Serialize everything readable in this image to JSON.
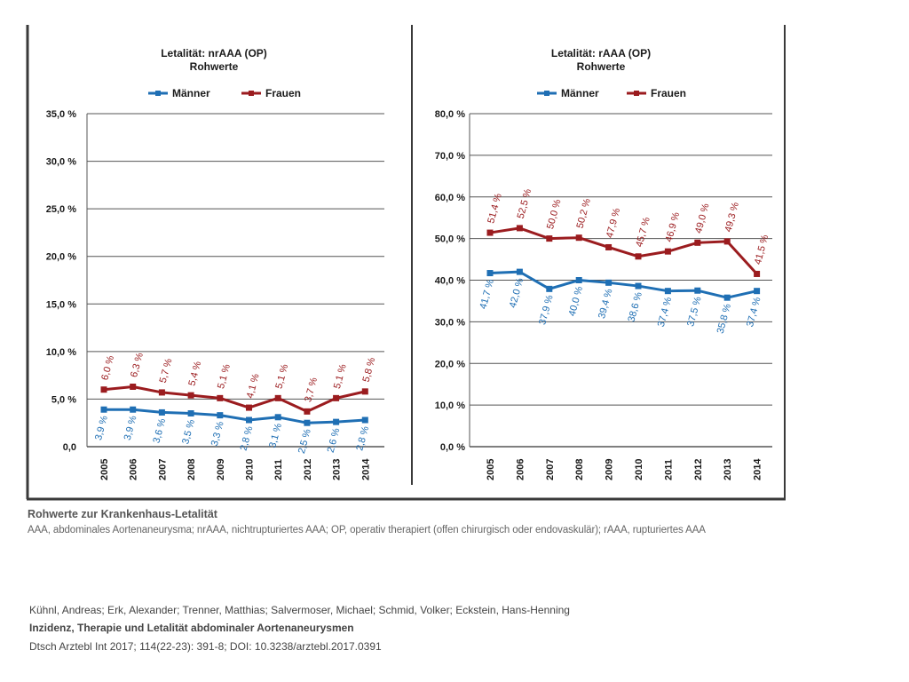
{
  "colors": {
    "maenner": "#1f6fb4",
    "frauen": "#9b1c1f",
    "grid": "#555555",
    "frame": "#3a3a3a"
  },
  "chart_data": [
    {
      "type": "line",
      "title": "Letalität: nrAAA (OP)",
      "subtitle": "Rohwerte",
      "categories": [
        "2005",
        "2006",
        "2007",
        "2008",
        "2009",
        "2010",
        "2011",
        "2012",
        "2013",
        "2014"
      ],
      "ylim": [
        0,
        35
      ],
      "yticks": [
        0,
        5,
        10,
        15,
        20,
        25,
        30,
        35
      ],
      "ytick_labels": [
        "0,0",
        "5,0 %",
        "10,0 %",
        "15,0 %",
        "20,0 %",
        "25,0 %",
        "30,0 %",
        "35,0 %"
      ],
      "legend_position": "top",
      "series": [
        {
          "name": "Männer",
          "color_key": "maenner",
          "values": [
            3.9,
            3.9,
            3.6,
            3.5,
            3.3,
            2.8,
            3.1,
            2.5,
            2.6,
            2.8
          ],
          "labels": [
            "3,9 %",
            "3,9 %",
            "3,6 %",
            "3,5 %",
            "3,3 %",
            "2,8 %",
            "3,1 %",
            "2,5 %",
            "2,6 %",
            "2,8 %"
          ]
        },
        {
          "name": "Frauen",
          "color_key": "frauen",
          "values": [
            6.0,
            6.3,
            5.7,
            5.4,
            5.1,
            4.1,
            5.1,
            3.7,
            5.1,
            5.8
          ],
          "labels": [
            "6,0 %",
            "6,3 %",
            "5,7 %",
            "5,4 %",
            "5,1 %",
            "4,1 %",
            "5,1 %",
            "3,7 %",
            "5,1 %",
            "5,8 %"
          ]
        }
      ]
    },
    {
      "type": "line",
      "title": "Letalität: rAAA (OP)",
      "subtitle": "Rohwerte",
      "categories": [
        "2005",
        "2006",
        "2007",
        "2008",
        "2009",
        "2010",
        "2011",
        "2012",
        "2013",
        "2014"
      ],
      "ylim": [
        0,
        80
      ],
      "yticks": [
        0,
        10,
        20,
        30,
        40,
        50,
        60,
        70,
        80
      ],
      "ytick_labels": [
        "0,0 %",
        "10,0 %",
        "20,0 %",
        "30,0 %",
        "40,0 %",
        "50,0 %",
        "60,0 %",
        "70,0 %",
        "80,0 %"
      ],
      "legend_position": "top",
      "series": [
        {
          "name": "Männer",
          "color_key": "maenner",
          "values": [
            41.7,
            42.0,
            37.9,
            40.0,
            39.4,
            38.6,
            37.4,
            37.5,
            35.8,
            37.4
          ],
          "labels": [
            "41,7 %",
            "42,0 %",
            "37,9 %",
            "40,0 %",
            "39,4 %",
            "38,6 %",
            "37,4 %",
            "37,5 %",
            "35,8 %",
            "37,4 %"
          ]
        },
        {
          "name": "Frauen",
          "color_key": "frauen",
          "values": [
            51.4,
            52.5,
            50.0,
            50.2,
            47.9,
            45.7,
            46.9,
            49.0,
            49.3,
            41.5
          ],
          "labels": [
            "51,4 %",
            "52,5 %",
            "50,0 %",
            "50,2 %",
            "47,9 %",
            "45,7 %",
            "46,9 %",
            "49,0 %",
            "49,3 %",
            "41,5 %"
          ]
        }
      ]
    }
  ],
  "caption": {
    "title": "Rohwerte zur Krankenhaus-Letalität",
    "body": "AAA, abdominales Aortenaneurysma; nrAAA, nichtrupturiertes AAA; OP, operativ therapiert (offen chirurgisch oder endovaskulär); rAAA, rupturiertes AAA"
  },
  "citation": {
    "authors": "Kühnl, Andreas; Erk, Alexander; Trenner, Matthias; Salvermoser, Michael; Schmid, Volker; Eckstein, Hans-Henning",
    "title": "Inzidenz, Therapie und Letalität abdominaler Aortenaneurysmen",
    "source": "Dtsch Arztebl Int 2017; 114(22-23): 391-8; DOI: 10.3238/arztebl.2017.0391"
  }
}
